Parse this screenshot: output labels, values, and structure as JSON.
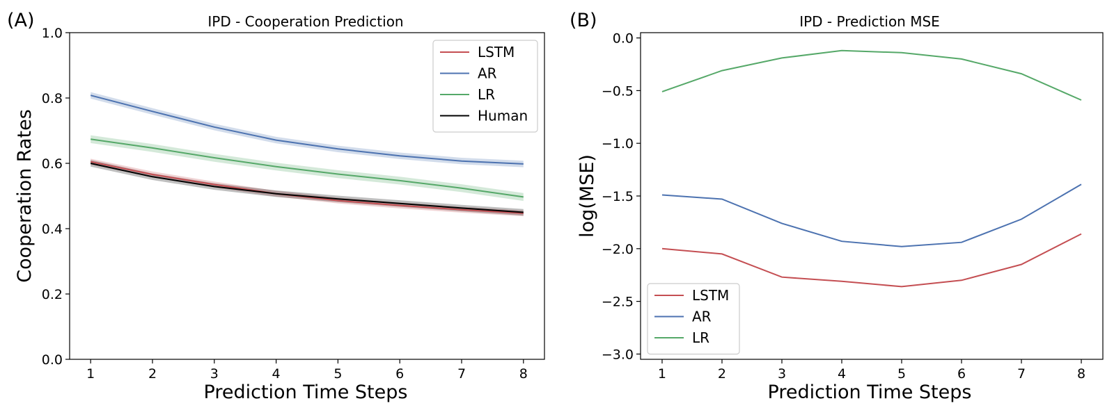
{
  "chart_data": [
    {
      "type": "line",
      "panel": "(A)",
      "title": "IPD - Cooperation Prediction",
      "xlabel": "Prediction Time Steps",
      "ylabel": "Cooperation Rates",
      "x": [
        1,
        2,
        3,
        4,
        5,
        6,
        7,
        8
      ],
      "xlim": [
        0.66,
        8.34
      ],
      "ylim": [
        0.0,
        1.0
      ],
      "xticks": [
        1,
        2,
        3,
        4,
        5,
        6,
        7,
        8
      ],
      "yticks": [
        0.0,
        0.2,
        0.4,
        0.6,
        0.8,
        1.0
      ],
      "ytick_labels": [
        "0.0",
        "0.2",
        "0.4",
        "0.6",
        "0.8",
        "1.0"
      ],
      "legend_position": "upper right",
      "series": [
        {
          "name": "LSTM",
          "color": "#c44e52",
          "values": [
            0.605,
            0.566,
            0.535,
            0.507,
            0.486,
            0.471,
            0.458,
            0.447
          ],
          "band": 0.009
        },
        {
          "name": "AR",
          "color": "#4c72b0",
          "values": [
            0.808,
            0.759,
            0.711,
            0.671,
            0.644,
            0.623,
            0.607,
            0.598
          ],
          "band": 0.01
        },
        {
          "name": "LR",
          "color": "#55a868",
          "values": [
            0.674,
            0.647,
            0.617,
            0.59,
            0.567,
            0.547,
            0.524,
            0.497
          ],
          "band": 0.012
        },
        {
          "name": "Human",
          "color": "#000000",
          "values": [
            0.6,
            0.559,
            0.529,
            0.507,
            0.491,
            0.477,
            0.463,
            0.45
          ],
          "band": 0.01
        }
      ]
    },
    {
      "type": "line",
      "panel": "(B)",
      "title": "IPD - Prediction MSE",
      "xlabel": "Prediction Time Steps",
      "ylabel": "log(MSE)",
      "x": [
        1,
        2,
        3,
        4,
        5,
        6,
        7,
        8
      ],
      "xlim": [
        0.64,
        8.36
      ],
      "ylim": [
        -3.05,
        0.05
      ],
      "xticks": [
        1,
        2,
        3,
        4,
        5,
        6,
        7,
        8
      ],
      "yticks": [
        0.0,
        -0.5,
        -1.0,
        -1.5,
        -2.0,
        -2.5,
        -3.0
      ],
      "ytick_labels": [
        "0.0",
        "−0.5",
        "−1.0",
        "−1.5",
        "−2.0",
        "−2.5",
        "−3.0"
      ],
      "legend_position": "lower left",
      "series": [
        {
          "name": "LSTM",
          "color": "#c44e52",
          "values": [
            -2.0,
            -2.05,
            -2.27,
            -2.31,
            -2.36,
            -2.3,
            -2.15,
            -1.86
          ]
        },
        {
          "name": "AR",
          "color": "#4c72b0",
          "values": [
            -1.49,
            -1.53,
            -1.76,
            -1.93,
            -1.98,
            -1.94,
            -1.72,
            -1.39
          ]
        },
        {
          "name": "LR",
          "color": "#55a868",
          "values": [
            -0.51,
            -0.31,
            -0.19,
            -0.12,
            -0.14,
            -0.2,
            -0.34,
            -0.59
          ]
        }
      ]
    }
  ]
}
